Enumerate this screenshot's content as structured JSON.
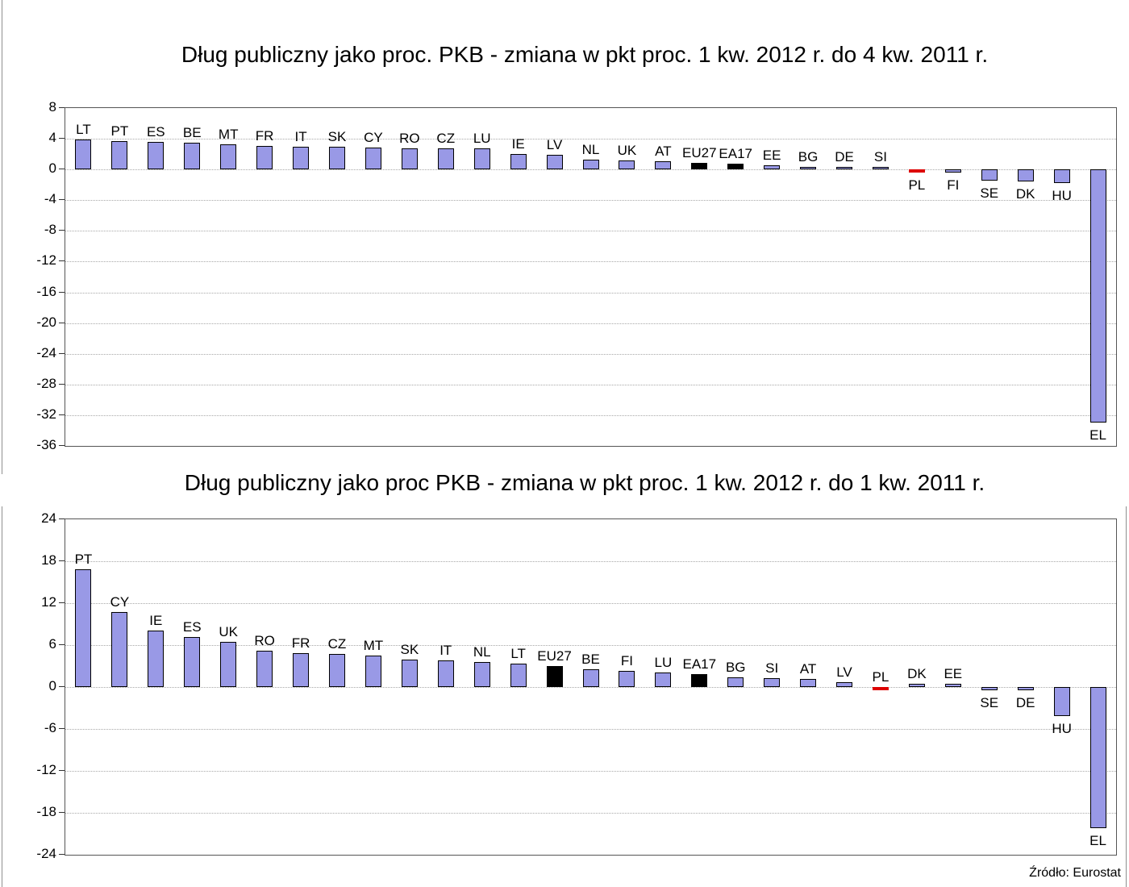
{
  "source_note": "Źródło: Eurostat",
  "colors": {
    "bar_fill": "#9999E6",
    "bar_border": "#000000",
    "aggregate_fill": "#000000",
    "highlight_fill": "#DD0000",
    "gridline": "#A8A8A8",
    "plot_border": "#555555"
  },
  "chart_data": [
    {
      "type": "bar",
      "title": "Dług publiczny jako proc. PKB - zmiana w pkt proc. 1 kw. 2012 r. do 4 kw. 2011 r.",
      "xlabel": "",
      "ylabel": "",
      "unit": "pkt proc. PKB",
      "ylim": [
        -36,
        8
      ],
      "yticks": [
        8,
        4,
        0,
        -4,
        -8,
        -12,
        -16,
        -20,
        -24,
        -28,
        -32,
        -36
      ],
      "grid": "horizontal-dotted",
      "legend": "none",
      "points": [
        {
          "code": "LT",
          "value": 3.9
        },
        {
          "code": "PT",
          "value": 3.7
        },
        {
          "code": "ES",
          "value": 3.6
        },
        {
          "code": "BE",
          "value": 3.5
        },
        {
          "code": "MT",
          "value": 3.3
        },
        {
          "code": "FR",
          "value": 3.1
        },
        {
          "code": "IT",
          "value": 3.0
        },
        {
          "code": "SK",
          "value": 3.0
        },
        {
          "code": "CY",
          "value": 2.9
        },
        {
          "code": "RO",
          "value": 2.8
        },
        {
          "code": "CZ",
          "value": 2.7
        },
        {
          "code": "LU",
          "value": 2.7
        },
        {
          "code": "IE",
          "value": 2.0
        },
        {
          "code": "LV",
          "value": 1.9
        },
        {
          "code": "NL",
          "value": 1.3
        },
        {
          "code": "UK",
          "value": 1.2
        },
        {
          "code": "AT",
          "value": 1.1
        },
        {
          "code": "EU27",
          "value": 0.9,
          "color": "black"
        },
        {
          "code": "EA17",
          "value": 0.8,
          "color": "black"
        },
        {
          "code": "EE",
          "value": 0.5
        },
        {
          "code": "BG",
          "value": 0.3
        },
        {
          "code": "DE",
          "value": 0.2
        },
        {
          "code": "SI",
          "value": 0.1
        },
        {
          "code": "PL",
          "value": -0.2,
          "color": "red"
        },
        {
          "code": "FI",
          "value": -0.4
        },
        {
          "code": "SE",
          "value": -1.4
        },
        {
          "code": "DK",
          "value": -1.6
        },
        {
          "code": "HU",
          "value": -1.8
        },
        {
          "code": "EL",
          "value": -33.0
        }
      ]
    },
    {
      "type": "bar",
      "title": "Dług publiczny jako proc PKB - zmiana w pkt proc. 1 kw. 2012 r. do 1 kw. 2011 r.",
      "xlabel": "",
      "ylabel": "",
      "unit": "pkt proc. PKB",
      "ylim": [
        -24,
        24
      ],
      "yticks": [
        24,
        18,
        12,
        6,
        0,
        -6,
        -12,
        -18,
        -24
      ],
      "grid": "horizontal-dotted",
      "legend": "none",
      "points": [
        {
          "code": "PT",
          "value": 16.9
        },
        {
          "code": "CY",
          "value": 10.7
        },
        {
          "code": "IE",
          "value": 8.1
        },
        {
          "code": "ES",
          "value": 7.2
        },
        {
          "code": "UK",
          "value": 6.5
        },
        {
          "code": "RO",
          "value": 5.2
        },
        {
          "code": "FR",
          "value": 4.8
        },
        {
          "code": "CZ",
          "value": 4.7
        },
        {
          "code": "MT",
          "value": 4.5
        },
        {
          "code": "SK",
          "value": 3.9
        },
        {
          "code": "IT",
          "value": 3.8
        },
        {
          "code": "NL",
          "value": 3.6
        },
        {
          "code": "LT",
          "value": 3.4
        },
        {
          "code": "EU27",
          "value": 3.0,
          "color": "black"
        },
        {
          "code": "BE",
          "value": 2.5
        },
        {
          "code": "FI",
          "value": 2.3
        },
        {
          "code": "LU",
          "value": 2.1
        },
        {
          "code": "EA17",
          "value": 1.9,
          "color": "black"
        },
        {
          "code": "BG",
          "value": 1.4
        },
        {
          "code": "SI",
          "value": 1.3
        },
        {
          "code": "AT",
          "value": 1.2
        },
        {
          "code": "LV",
          "value": 0.7
        },
        {
          "code": "PL",
          "value": -0.3,
          "color": "red",
          "label_pos": "above"
        },
        {
          "code": "DK",
          "value": 0.1
        },
        {
          "code": "EE",
          "value": 0.1
        },
        {
          "code": "SE",
          "value": -0.2
        },
        {
          "code": "DE",
          "value": -0.5
        },
        {
          "code": "HU",
          "value": -4.2
        },
        {
          "code": "EL",
          "value": -20.2
        }
      ]
    }
  ]
}
